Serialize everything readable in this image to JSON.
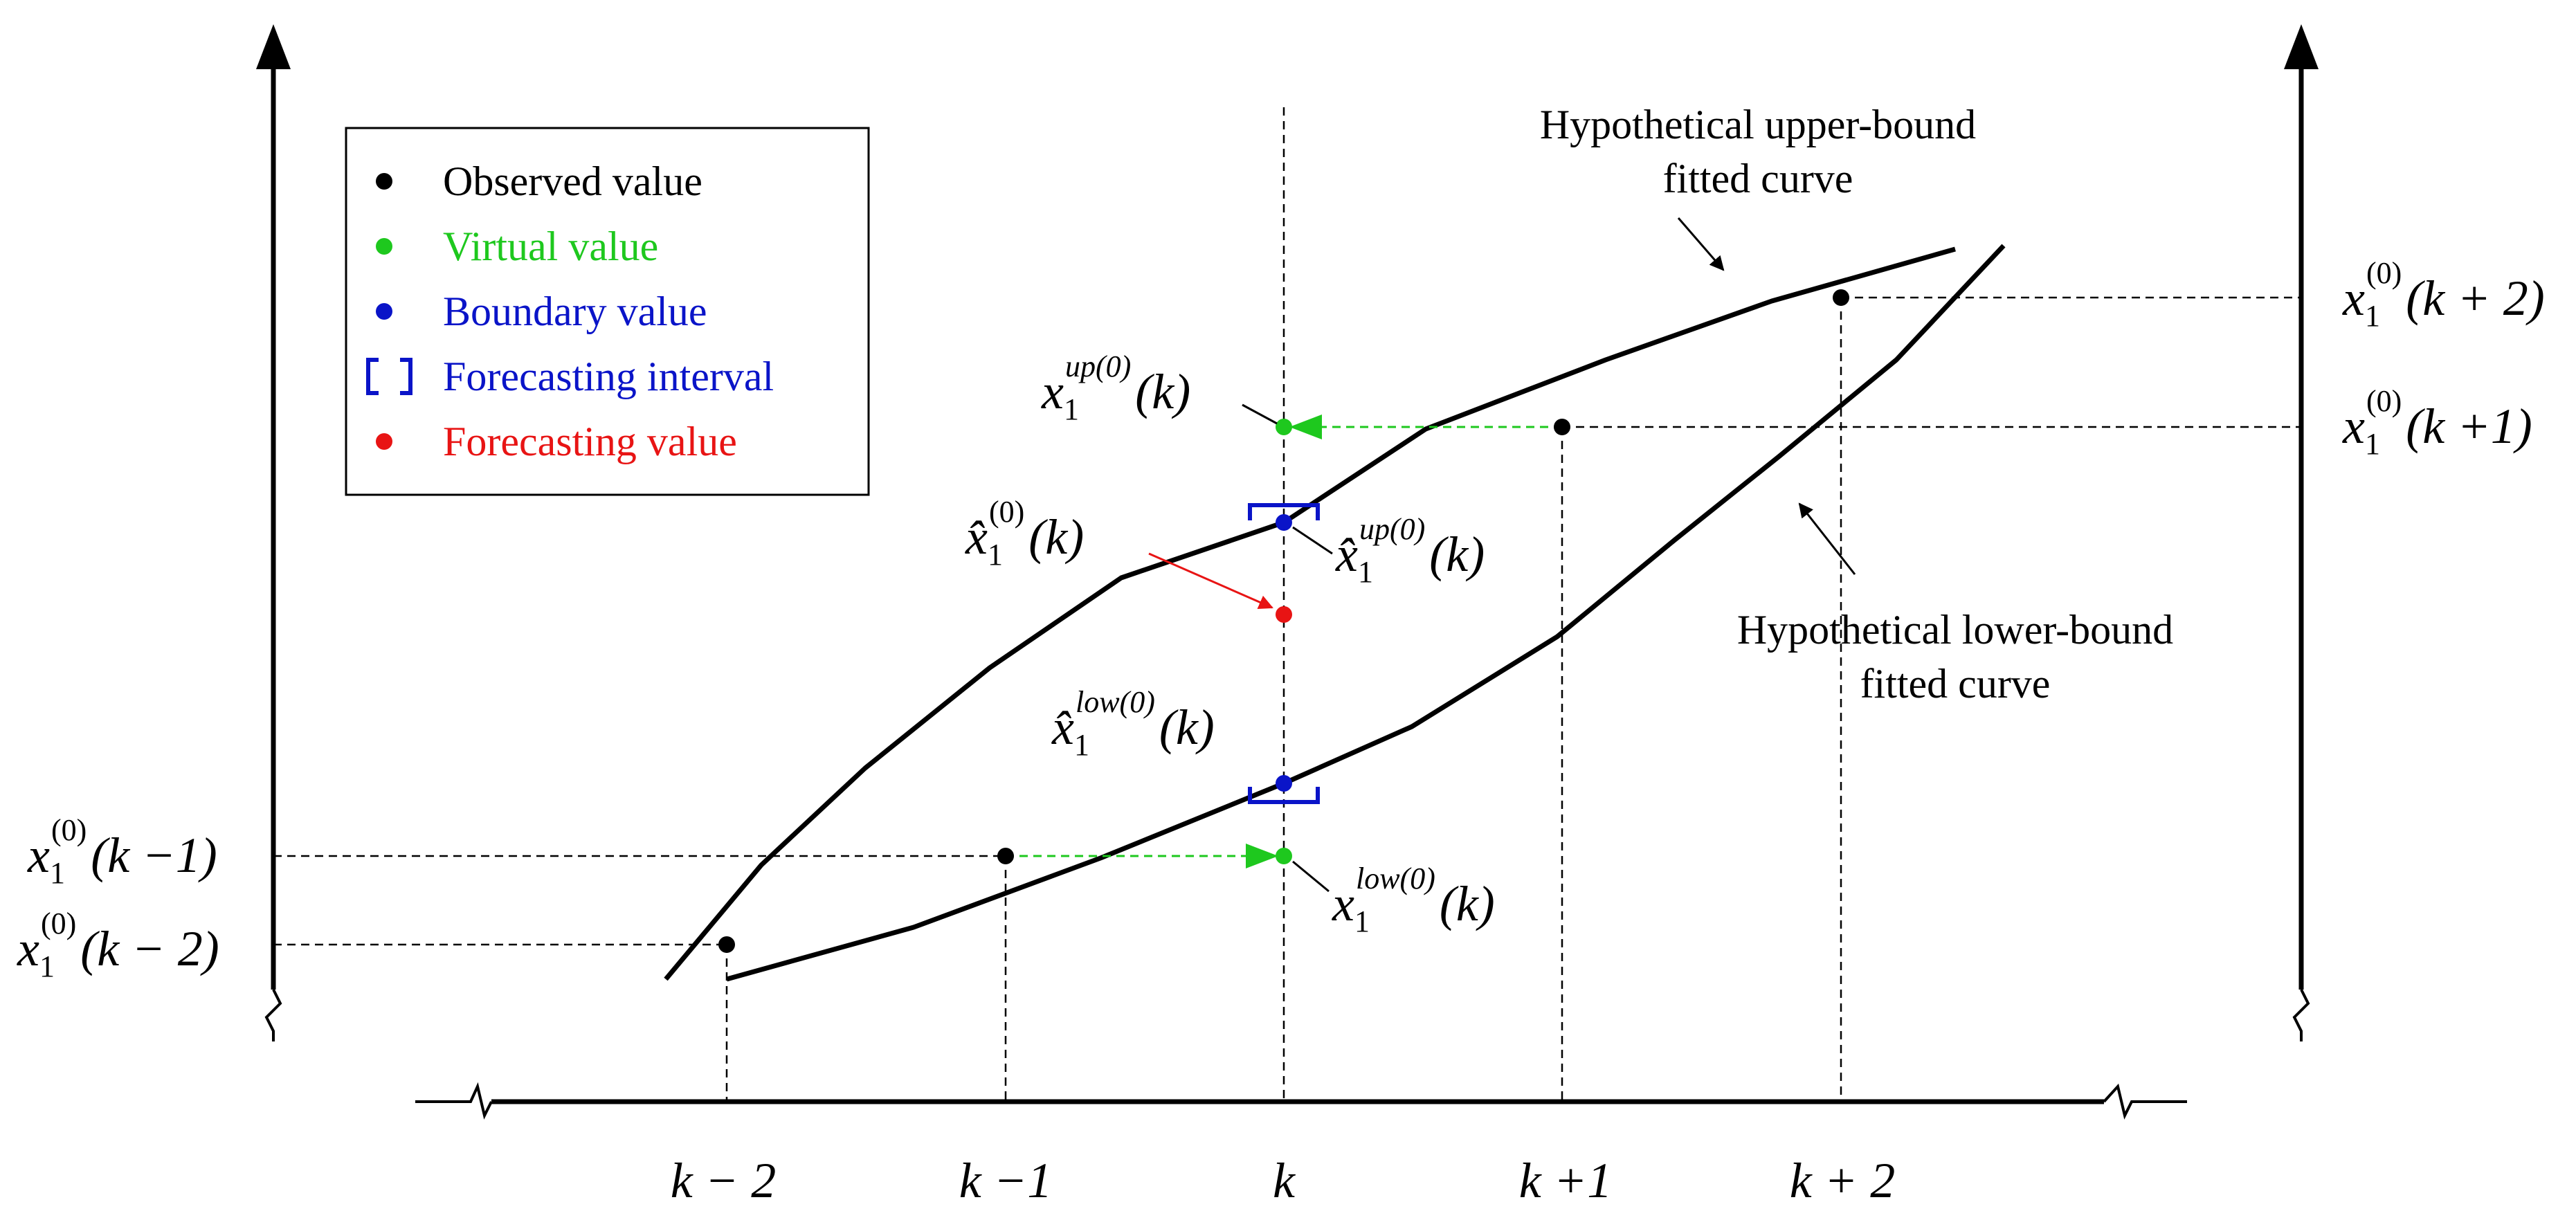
{
  "legend": {
    "observed": {
      "label": "Observed value",
      "color": "#000000"
    },
    "virtual": {
      "label": "Virtual value",
      "color": "#1ec81e"
    },
    "boundary": {
      "label": "Boundary value",
      "color": "#0a14c8"
    },
    "interval": {
      "label": "Forecasting interval",
      "color": "#0a14c8"
    },
    "forecast": {
      "label": "Forecasting value",
      "color": "#e81414"
    }
  },
  "annotations": {
    "upper_curve_line1": "Hypothetical upper-bound",
    "upper_curve_line2": "fitted curve",
    "lower_curve_line1": "Hypothetical  lower-bound",
    "lower_curve_line2": "fitted curve"
  },
  "x_ticks": {
    "km2": "k − 2",
    "km1": "k −1",
    "k": "k",
    "kp1": "k +1",
    "kp2": "k + 2"
  },
  "y_labels": {
    "km1": {
      "base": "x",
      "sub": "1",
      "sup": "(0)",
      "arg": "(k −1)"
    },
    "km2": {
      "base": "x",
      "sub": "1",
      "sup": "(0)",
      "arg": "(k − 2)"
    },
    "kp2": {
      "base": "x",
      "sub": "1",
      "sup": "(0)",
      "arg": "(k + 2)"
    },
    "kp1": {
      "base": "x",
      "sub": "1",
      "sup": "(0)",
      "arg": "(k +1)"
    }
  },
  "point_labels": {
    "virtual_up": {
      "base": "x",
      "sub": "1",
      "sup": "up(0)",
      "arg": "(k)"
    },
    "virtual_low": {
      "base": "x",
      "sub": "1",
      "sup": "low(0)",
      "arg": "(k)"
    },
    "forecast": {
      "base": "x̂",
      "sub": "1",
      "sup": "(0)",
      "arg": "(k)"
    },
    "boundary_up": {
      "base": "x̂",
      "sub": "1",
      "sup": "up(0)",
      "arg": "(k)"
    },
    "boundary_low": {
      "base": "x̂",
      "sub": "1",
      "sup": "low(0)",
      "arg": "(k)"
    }
  }
}
